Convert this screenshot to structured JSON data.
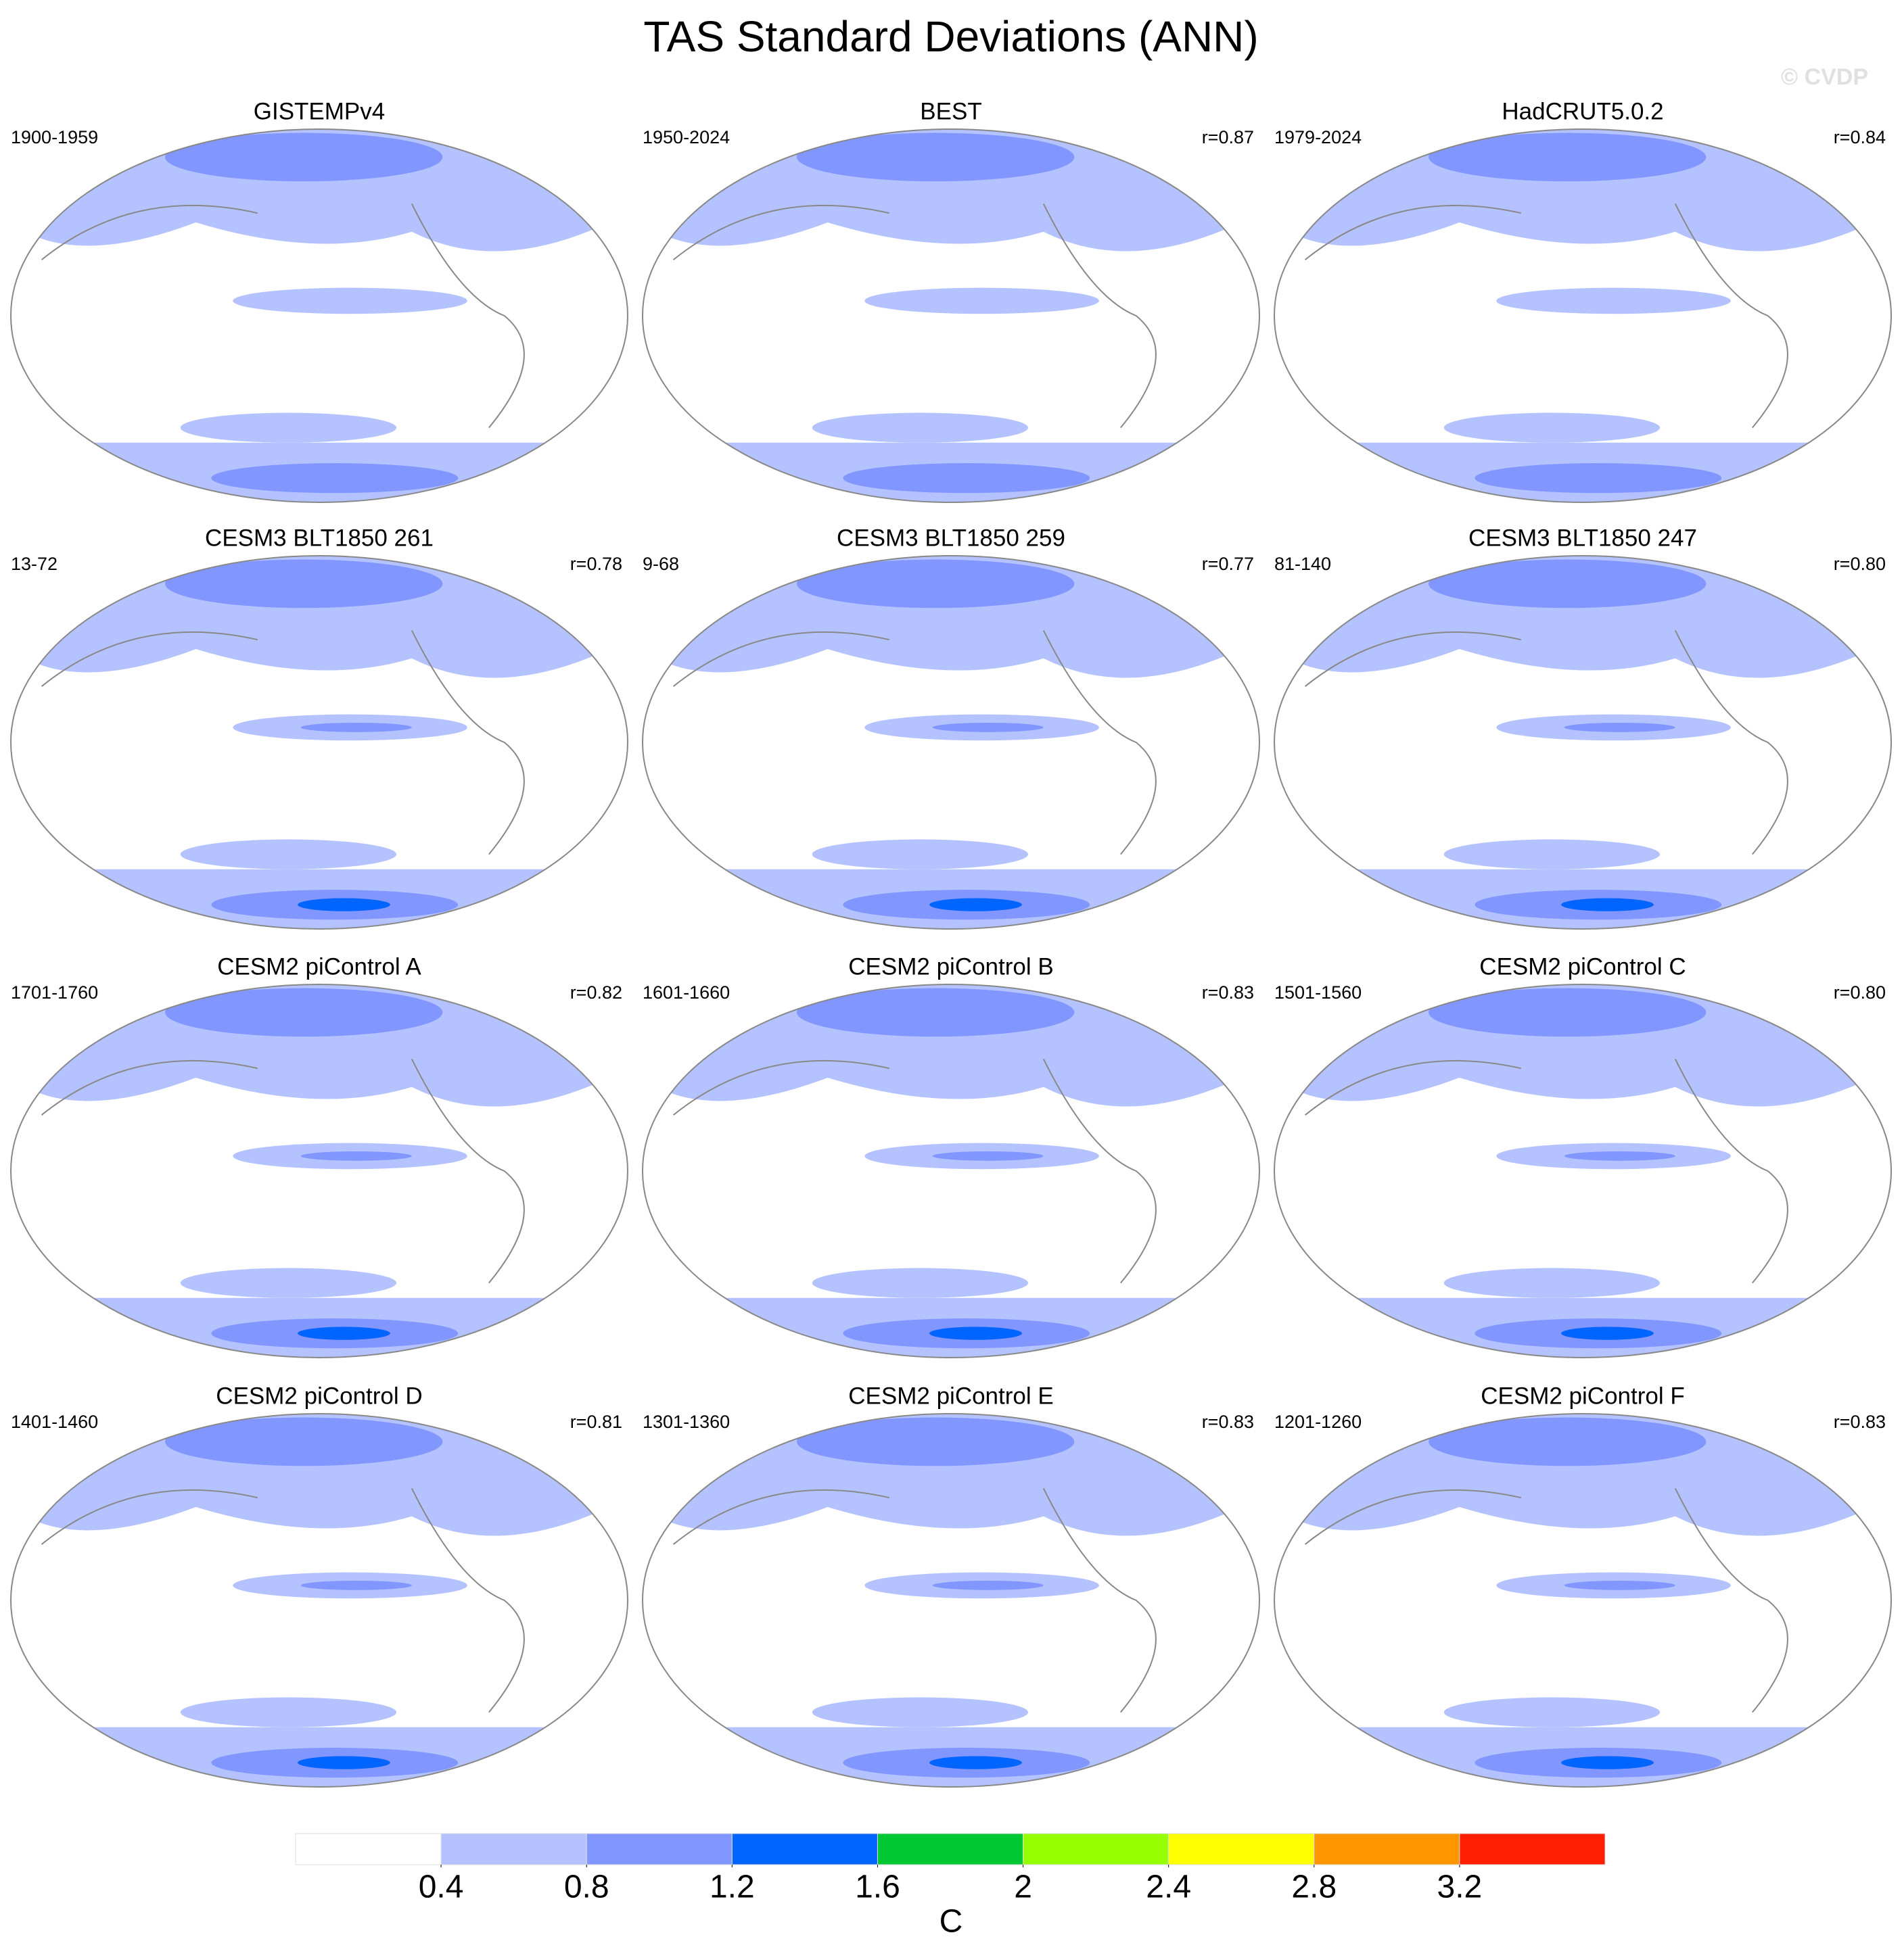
{
  "title": "TAS Standard Deviations (ANN)",
  "watermark": "© CVDP",
  "panels": [
    {
      "title": "GISTEMPv4",
      "period": "1900-1959"
    },
    {
      "title": "BEST",
      "period": "1950-2024",
      "r": "r=0.87"
    },
    {
      "title": "HadCRUT5.0.2",
      "period": "1979-2024",
      "r": "r=0.84"
    },
    {
      "title": "CESM3 BLT1850 261",
      "period": "13-72",
      "r": "r=0.78"
    },
    {
      "title": "CESM3 BLT1850 259",
      "period": "9-68",
      "r": "r=0.77"
    },
    {
      "title": "CESM3 BLT1850 247",
      "period": "81-140",
      "r": "r=0.80"
    },
    {
      "title": "CESM2 piControl A",
      "period": "1701-1760",
      "r": "r=0.82"
    },
    {
      "title": "CESM2 piControl B",
      "period": "1601-1660",
      "r": "r=0.83"
    },
    {
      "title": "CESM2 piControl C",
      "period": "1501-1560",
      "r": "r=0.80"
    },
    {
      "title": "CESM2 piControl D",
      "period": "1401-1460",
      "r": "r=0.81"
    },
    {
      "title": "CESM2 piControl E",
      "period": "1301-1360",
      "r": "r=0.83"
    },
    {
      "title": "CESM2 piControl F",
      "period": "1201-1260",
      "r": "r=0.83"
    }
  ],
  "colorbar": {
    "levels": [
      0.4,
      0.8,
      1.2,
      1.6,
      2,
      2.4,
      2.8,
      3.2
    ],
    "colors": [
      "#ffffff",
      "#b4c3ff",
      "#8296ff",
      "#0064ff",
      "#00c832",
      "#96ff00",
      "#ffff00",
      "#ff9600",
      "#ff1e00"
    ],
    "label": "C"
  }
}
